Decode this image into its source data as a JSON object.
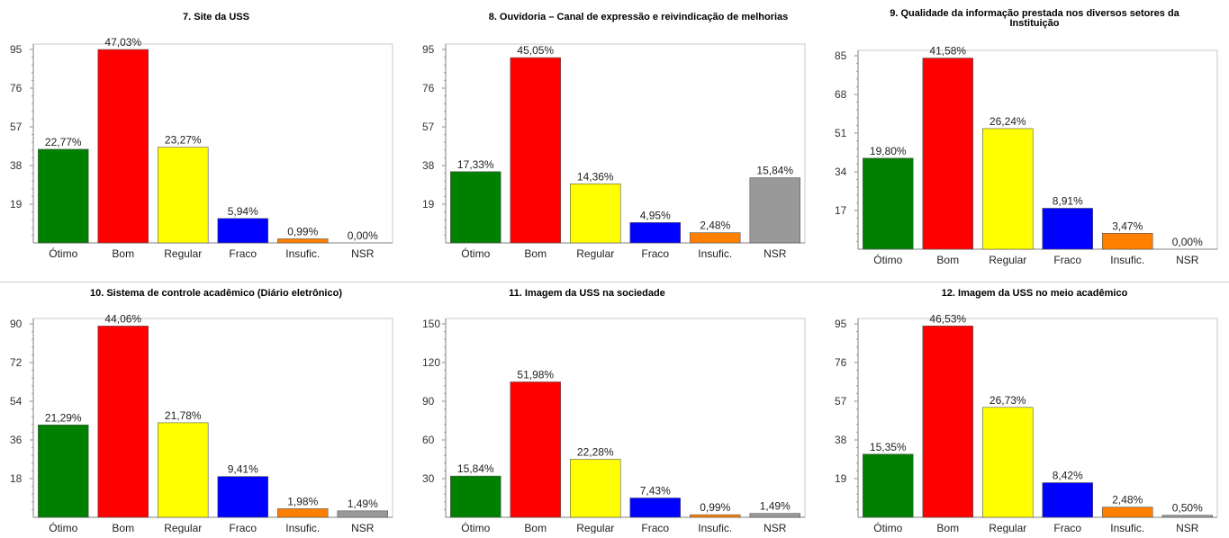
{
  "chart_data": [
    {
      "type": "bar",
      "title": "7. Site da USS",
      "categories": [
        "Ótimo",
        "Bom",
        "Regular",
        "Fraco",
        "Insufic.",
        "NSR"
      ],
      "values": [
        46,
        95,
        47,
        12,
        2,
        0
      ],
      "data_labels": [
        "22,77%",
        "47,03%",
        "23,27%",
        "5,94%",
        "0,99%",
        "0,00%"
      ],
      "yticks": [
        "19",
        "38",
        "57",
        "76",
        "95"
      ],
      "ylim": [
        0,
        95
      ],
      "colors": [
        "#008000",
        "#ff0000",
        "#ffff00",
        "#0000ff",
        "#ff8000",
        "#999999"
      ],
      "grid": false
    },
    {
      "type": "bar",
      "title": "8. Ouvidoria – Canal de expressão e reivindicação de melhorias",
      "categories": [
        "Ótimo",
        "Bom",
        "Regular",
        "Fraco",
        "Insufic.",
        "NSR"
      ],
      "values": [
        35,
        91,
        29,
        10,
        5,
        32
      ],
      "data_labels": [
        "17,33%",
        "45,05%",
        "14,36%",
        "4,95%",
        "2,48%",
        "15,84%"
      ],
      "yticks": [
        "19",
        "38",
        "57",
        "76",
        "95"
      ],
      "ylim": [
        0,
        95
      ],
      "colors": [
        "#008000",
        "#ff0000",
        "#ffff00",
        "#0000ff",
        "#ff8000",
        "#999999"
      ],
      "grid": false
    },
    {
      "type": "bar",
      "title": "9. Qualidade da informação prestada nos diversos setores da Instituição",
      "categories": [
        "Ótimo",
        "Bom",
        "Regular",
        "Fraco",
        "Insufic.",
        "NSR"
      ],
      "values": [
        40,
        84,
        53,
        18,
        7,
        0
      ],
      "data_labels": [
        "19,80%",
        "41,58%",
        "26,24%",
        "8,91%",
        "3,47%",
        "0,00%"
      ],
      "yticks": [
        "17",
        "34",
        "51",
        "68",
        "85"
      ],
      "ylim": [
        0,
        85
      ],
      "colors": [
        "#008000",
        "#ff0000",
        "#ffff00",
        "#0000ff",
        "#ff8000",
        "#999999"
      ],
      "grid": false
    },
    {
      "type": "bar",
      "title": "10. Sistema de controle acadêmico (Diário eletrônico)",
      "categories": [
        "Ótimo",
        "Bom",
        "Regular",
        "Fraco",
        "Insufic.",
        "NSR"
      ],
      "values": [
        43,
        89,
        44,
        19,
        4,
        3
      ],
      "data_labels": [
        "21,29%",
        "44,06%",
        "21,78%",
        "9,41%",
        "1,98%",
        "1,49%"
      ],
      "yticks": [
        "18",
        "36",
        "54",
        "72",
        "90"
      ],
      "ylim": [
        0,
        90
      ],
      "colors": [
        "#008000",
        "#ff0000",
        "#ffff00",
        "#0000ff",
        "#ff8000",
        "#999999"
      ],
      "grid": false
    },
    {
      "type": "bar",
      "title": "11. Imagem da USS na sociedade",
      "categories": [
        "Ótimo",
        "Bom",
        "Regular",
        "Fraco",
        "Insufic.",
        "NSR"
      ],
      "values": [
        32,
        105,
        45,
        15,
        2,
        3
      ],
      "data_labels": [
        "15,84%",
        "51,98%",
        "22,28%",
        "7,43%",
        "0,99%",
        "1,49%"
      ],
      "yticks": [
        "30",
        "60",
        "90",
        "120",
        "150"
      ],
      "ylim": [
        0,
        150
      ],
      "colors": [
        "#008000",
        "#ff0000",
        "#ffff00",
        "#0000ff",
        "#ff8000",
        "#999999"
      ],
      "grid": false
    },
    {
      "type": "bar",
      "title": "12. Imagem da USS no meio acadêmico",
      "categories": [
        "Ótimo",
        "Bom",
        "Regular",
        "Fraco",
        "Insufic.",
        "NSR"
      ],
      "values": [
        31,
        94,
        54,
        17,
        5,
        1
      ],
      "data_labels": [
        "15,35%",
        "46,53%",
        "26,73%",
        "8,42%",
        "2,48%",
        "0,50%"
      ],
      "yticks": [
        "19",
        "38",
        "57",
        "76",
        "95"
      ],
      "ylim": [
        0,
        95
      ],
      "colors": [
        "#008000",
        "#ff0000",
        "#ffff00",
        "#0000ff",
        "#ff8000",
        "#999999"
      ],
      "grid": false
    }
  ]
}
